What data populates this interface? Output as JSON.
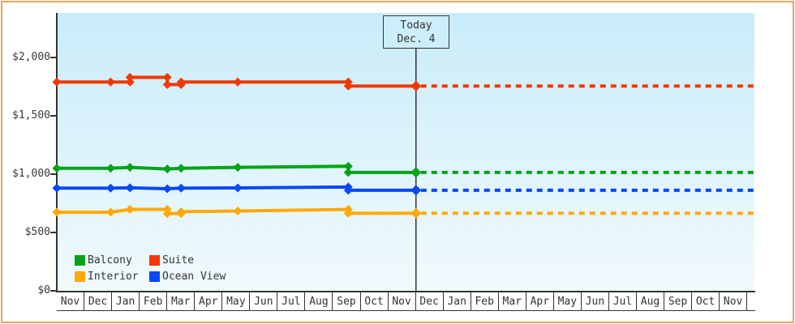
{
  "chart_data": {
    "type": "line",
    "title": "",
    "x_axis": {
      "range": [
        0,
        25.25
      ],
      "months": [
        "Nov",
        "Dec",
        "Jan",
        "Feb",
        "Mar",
        "Apr",
        "May",
        "Jun",
        "Jul",
        "Aug",
        "Sep",
        "Oct",
        "Nov",
        "Dec",
        "Jan",
        "Feb",
        "Mar",
        "Apr",
        "May",
        "Jun",
        "Jul",
        "Aug",
        "Sep",
        "Oct",
        "Nov",
        ""
      ]
    },
    "y_axis": {
      "ticks": [
        {
          "label": "$0",
          "value": 0
        },
        {
          "label": "$500",
          "value": 500
        },
        {
          "label": "$1,000",
          "value": 1000
        },
        {
          "label": "$1,500",
          "value": 1500
        },
        {
          "label": "$2,000",
          "value": 2000
        }
      ],
      "range": [
        0,
        2150
      ]
    },
    "today": {
      "line1": "Today",
      "line2": "Dec. 4",
      "t": 13.0
    },
    "series": [
      {
        "name": "Suite",
        "color": "#f23900",
        "points": [
          [
            0,
            1790
          ],
          [
            1.95,
            1790
          ],
          [
            2.65,
            1790
          ],
          [
            2.65,
            1830
          ],
          [
            4.0,
            1830
          ],
          [
            4.0,
            1768
          ],
          [
            4.5,
            1768
          ],
          [
            4.5,
            1790
          ],
          [
            6.55,
            1790
          ],
          [
            10.55,
            1790
          ],
          [
            10.55,
            1755
          ],
          [
            13,
            1755
          ]
        ],
        "dotted_value": 1755
      },
      {
        "name": "Balcony",
        "color": "#00a318",
        "points": [
          [
            0,
            1050
          ],
          [
            1.95,
            1050
          ],
          [
            2.65,
            1058
          ],
          [
            4.0,
            1044
          ],
          [
            4.5,
            1050
          ],
          [
            6.55,
            1058
          ],
          [
            10.55,
            1068
          ],
          [
            10.55,
            1015
          ],
          [
            13,
            1015
          ]
        ],
        "dotted_value": 1015
      },
      {
        "name": "Ocean View",
        "color": "#0847fa",
        "points": [
          [
            0,
            880
          ],
          [
            1.95,
            880
          ],
          [
            2.65,
            883
          ],
          [
            4.0,
            875
          ],
          [
            4.5,
            880
          ],
          [
            6.55,
            882
          ],
          [
            10.55,
            890
          ],
          [
            10.55,
            862
          ],
          [
            13,
            862
          ]
        ],
        "dotted_value": 862
      },
      {
        "name": "Interior",
        "color": "#ffa800",
        "points": [
          [
            0,
            674
          ],
          [
            1.95,
            674
          ],
          [
            2.65,
            698
          ],
          [
            4.0,
            698
          ],
          [
            4.0,
            662
          ],
          [
            4.5,
            662
          ],
          [
            4.5,
            678
          ],
          [
            6.55,
            684
          ],
          [
            10.55,
            698
          ],
          [
            10.55,
            665
          ],
          [
            13,
            665
          ]
        ],
        "dotted_value": 665
      }
    ],
    "legend_position": "bottom-left-inside"
  },
  "legend": {
    "items": [
      {
        "label": "Balcony",
        "color": "#00a318"
      },
      {
        "label": "Suite",
        "color": "#f23900"
      },
      {
        "label": "Interior",
        "color": "#ffa800"
      },
      {
        "label": "Ocean View",
        "color": "#0847fa"
      }
    ]
  },
  "ui_colors": {
    "frame_border": "#e9a45c",
    "plot_bg_top": "#c9ecfa",
    "plot_bg_bottom": "#f1fafd",
    "axis": "#333333",
    "today_box_fill": "#cdeefb"
  }
}
